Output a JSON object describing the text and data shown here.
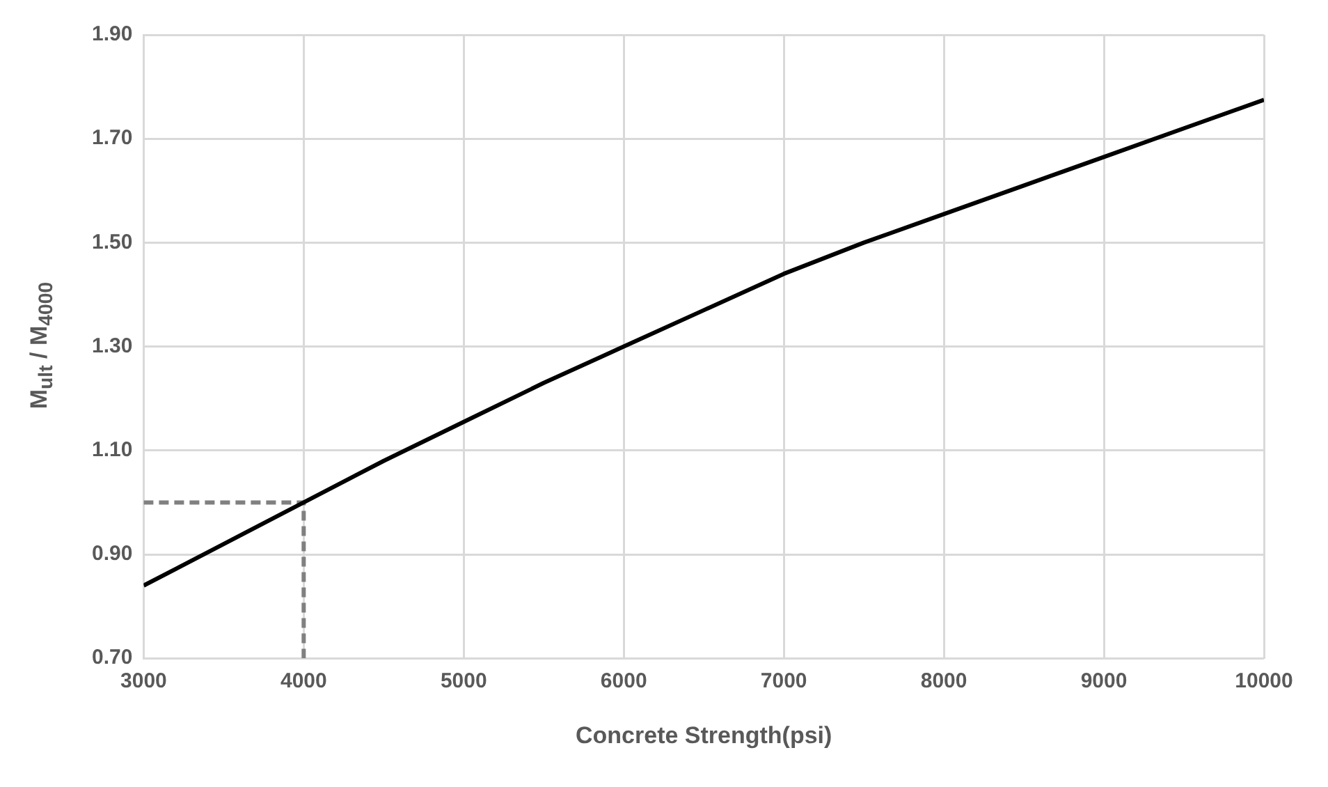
{
  "chart_data": {
    "type": "line",
    "xlabel": "Concrete Strength(psi)",
    "ylabel": "M$_{ult}$ / M$_{4000}$",
    "xlim": [
      3000,
      10000
    ],
    "xticks": [
      3000,
      4000,
      5000,
      6000,
      7000,
      8000,
      9000,
      10000
    ],
    "ylim": [
      0.7,
      1.9
    ],
    "yticks": [
      {
        "value": 0.7,
        "label": "0.70"
      },
      {
        "value": 0.9,
        "label": "0.90"
      },
      {
        "value": 1.1,
        "label": "1.10"
      },
      {
        "value": 1.3,
        "label": "1.30"
      },
      {
        "value": 1.5,
        "label": "1.50"
      },
      {
        "value": 1.7,
        "label": "1.70"
      },
      {
        "value": 1.9,
        "label": "1.90"
      }
    ],
    "grid": true,
    "legend": false,
    "marker": "none",
    "series": [
      {
        "color": "#000000",
        "line_style": "solid",
        "x": [
          3000,
          3500,
          4000,
          4500,
          5000,
          5500,
          6000,
          6500,
          7000,
          7500,
          8000,
          8500,
          9000,
          9500,
          10000
        ],
        "values": [
          0.84,
          0.92,
          1.0,
          1.08,
          1.155,
          1.23,
          1.3,
          1.37,
          1.44,
          1.5,
          1.555,
          1.61,
          1.665,
          1.72,
          1.775
        ]
      },
      {
        "color": "#808080",
        "line_style": "dashed",
        "x": [
          3000,
          4000,
          4000
        ],
        "values": [
          1.0,
          1.0,
          0.7
        ]
      }
    ]
  }
}
